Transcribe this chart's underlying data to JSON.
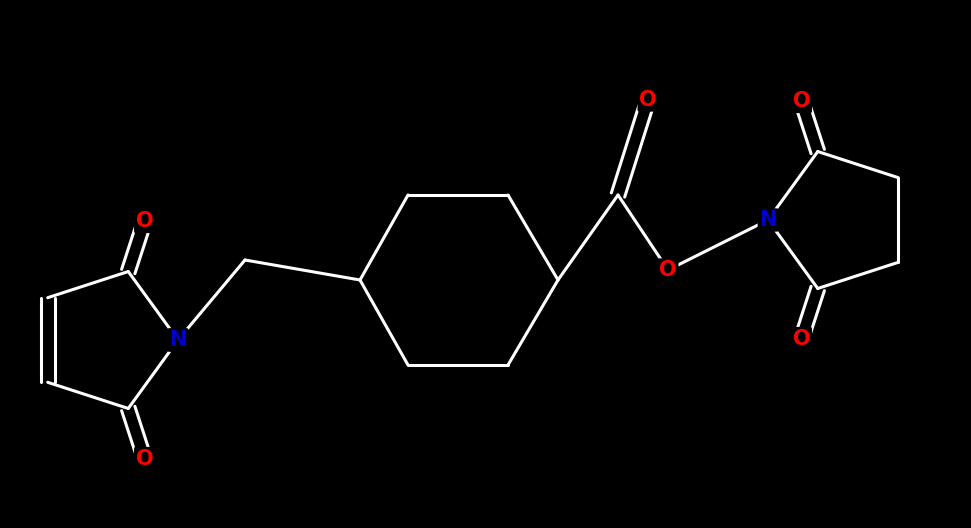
{
  "background_color": "#000000",
  "bond_color": "#ffffff",
  "N_color": "#0000cd",
  "O_color": "#ff0000",
  "bond_width": 2.2,
  "font_size_atom": 15,
  "figsize": [
    9.71,
    5.28
  ],
  "dpi": 100,
  "xlim": [
    0,
    9.71
  ],
  "ylim": [
    0,
    5.28
  ]
}
